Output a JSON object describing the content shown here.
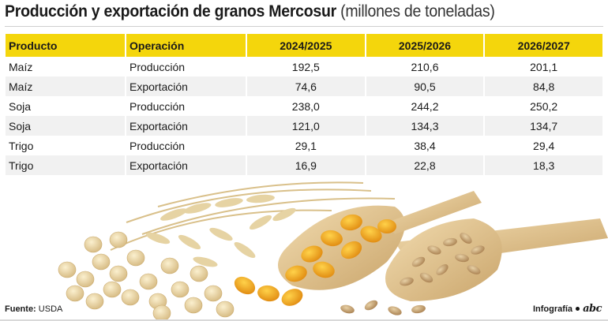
{
  "title": {
    "main": "Producción y exportación de granos Mercosur",
    "unit": "(millones de toneladas)"
  },
  "table": {
    "headers": [
      "Producto",
      "Operación",
      "2024/2025",
      "2025/2026",
      "2026/2027"
    ],
    "rows": [
      [
        "Maíz",
        "Producción",
        "192,5",
        "210,6",
        "201,1"
      ],
      [
        "Maíz",
        "Exportación",
        "74,6",
        "90,5",
        "84,8"
      ],
      [
        "Soja",
        "Producción",
        "238,0",
        "244,2",
        "250,2"
      ],
      [
        "Soja",
        "Exportación",
        "121,0",
        "134,3",
        "134,7"
      ],
      [
        "Trigo",
        "Producción",
        "29,1",
        "38,4",
        "29,4"
      ],
      [
        "Trigo",
        "Exportación",
        "16,9",
        "22,8",
        "18,3"
      ]
    ]
  },
  "footer": {
    "source_label": "Fuente:",
    "source_value": "USDA",
    "credit": "Infografía",
    "logo_text": "abc"
  },
  "colors": {
    "header_bg": "#f4d60c",
    "row_alt_bg": "#f1f1f1"
  }
}
